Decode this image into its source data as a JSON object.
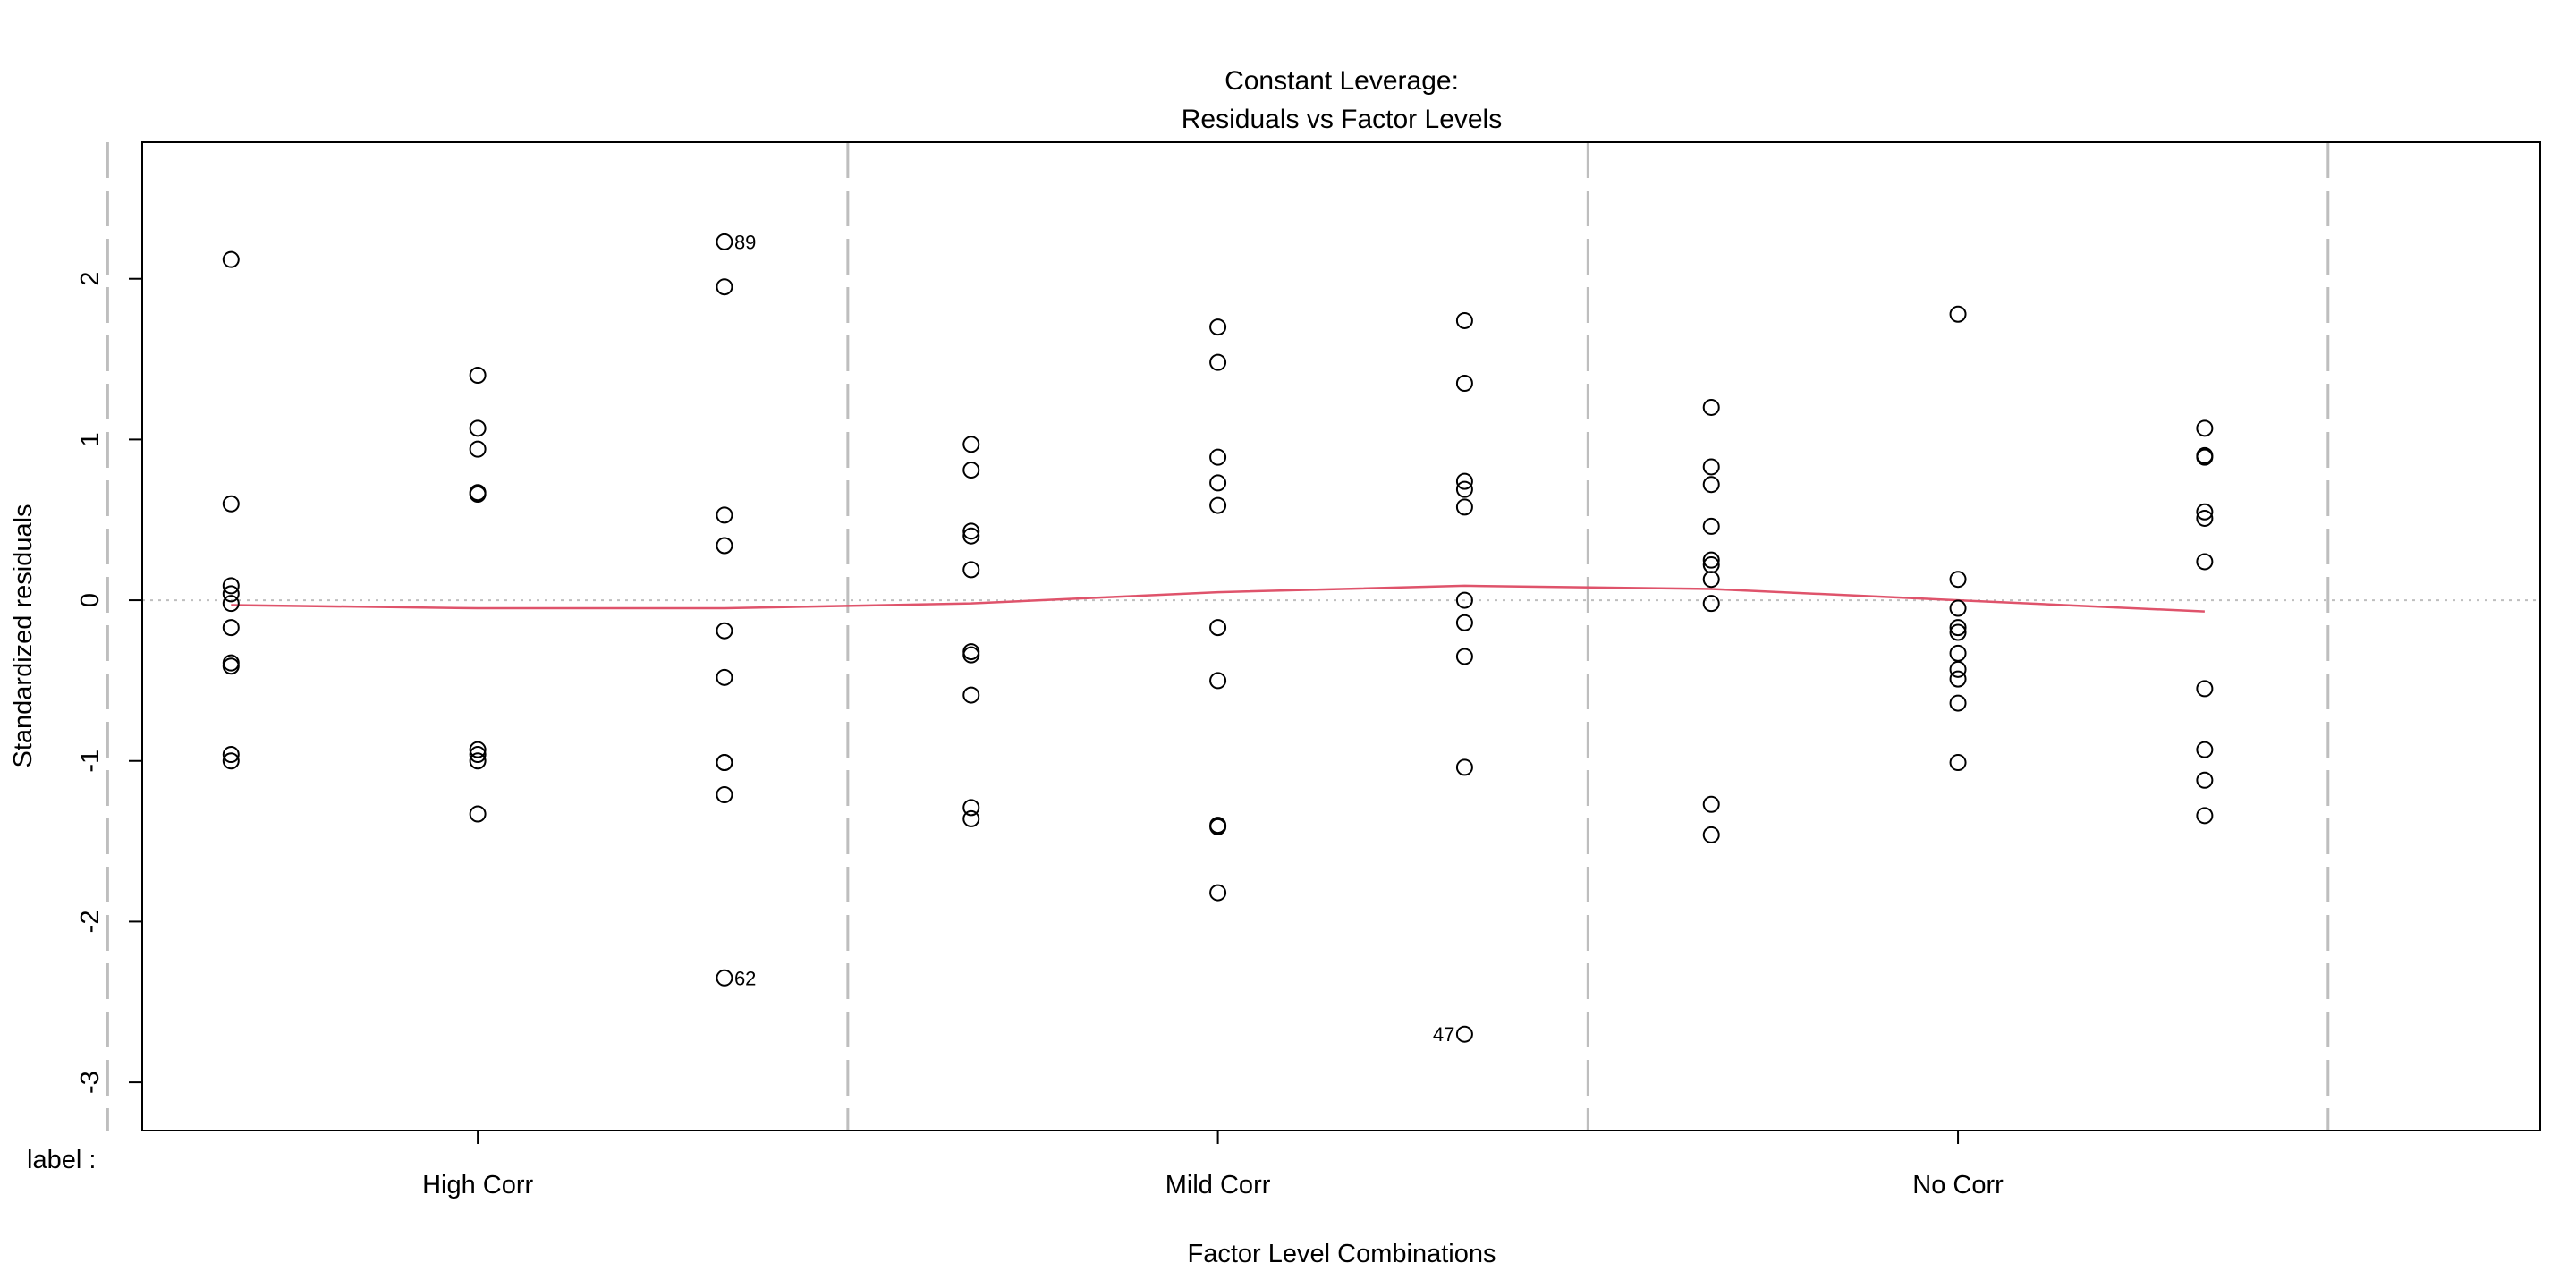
{
  "chart_data": {
    "type": "scatter",
    "title": "Constant Leverage:",
    "subtitle": "Residuals vs Factor Levels",
    "xlabel": "Factor Level Combinations",
    "ylabel": "Standardized residuals",
    "factor_label": "label :",
    "ylim": [
      -3.3,
      2.85
    ],
    "xlim": [
      0.64,
      10.36
    ],
    "y_ticks": [
      2,
      1,
      0,
      -1,
      -2,
      -3
    ],
    "group_labels": [
      {
        "text": "High Corr",
        "x": 2
      },
      {
        "text": "Mild Corr",
        "x": 5
      },
      {
        "text": "No Corr",
        "x": 8
      }
    ],
    "separators": [
      0.5,
      3.5,
      6.5,
      9.5
    ],
    "zero_line": true,
    "colors": {
      "points": "#000000",
      "smooth": "#df536b",
      "separator": "#bebebe",
      "zero": "#bebebe"
    },
    "points": [
      {
        "x": 1,
        "y": [
          2.12,
          0.6,
          0.09,
          0.04,
          -0.02,
          -0.17,
          -0.39,
          -0.41,
          -0.96,
          -1.0
        ]
      },
      {
        "x": 2,
        "y": [
          1.4,
          1.07,
          0.94,
          0.67,
          0.66,
          -0.93,
          -0.96,
          -1.0,
          -1.33
        ]
      },
      {
        "x": 3,
        "y": [
          2.23,
          1.95,
          0.53,
          0.34,
          -0.19,
          -0.48,
          -1.01,
          -1.01,
          -1.21,
          -2.35
        ]
      },
      {
        "x": 4,
        "y": [
          0.97,
          0.81,
          0.43,
          0.4,
          0.19,
          -0.32,
          -0.34,
          -0.59,
          -1.29,
          -1.36
        ]
      },
      {
        "x": 5,
        "y": [
          1.7,
          1.48,
          0.89,
          0.73,
          0.59,
          -0.17,
          -0.5,
          -1.4,
          -1.41,
          -1.82
        ]
      },
      {
        "x": 6,
        "y": [
          1.74,
          1.35,
          0.74,
          0.69,
          0.58,
          0.0,
          -0.14,
          -0.35,
          -1.04,
          -2.7
        ]
      },
      {
        "x": 7,
        "y": [
          1.2,
          0.83,
          0.72,
          0.46,
          0.25,
          0.22,
          0.13,
          -0.02,
          -1.27,
          -1.46
        ]
      },
      {
        "x": 8,
        "y": [
          1.78,
          0.13,
          -0.05,
          -0.17,
          -0.2,
          -0.33,
          -0.43,
          -0.49,
          -0.64,
          -1.01
        ]
      },
      {
        "x": 9,
        "y": [
          1.07,
          0.9,
          0.89,
          0.55,
          0.51,
          0.24,
          -0.55,
          -0.93,
          -1.12,
          -1.34
        ]
      }
    ],
    "smooth_line": {
      "x": [
        1,
        2,
        3,
        4,
        5,
        6,
        7,
        8,
        9
      ],
      "y": [
        -0.03,
        -0.05,
        -0.05,
        -0.02,
        0.05,
        0.09,
        0.07,
        0.0,
        -0.07
      ]
    },
    "annotations": [
      {
        "text": "89",
        "x": 3,
        "y": 2.23,
        "side": "right"
      },
      {
        "text": "62",
        "x": 3,
        "y": -2.35,
        "side": "right"
      },
      {
        "text": "47",
        "x": 6,
        "y": -2.7,
        "side": "left"
      }
    ]
  }
}
